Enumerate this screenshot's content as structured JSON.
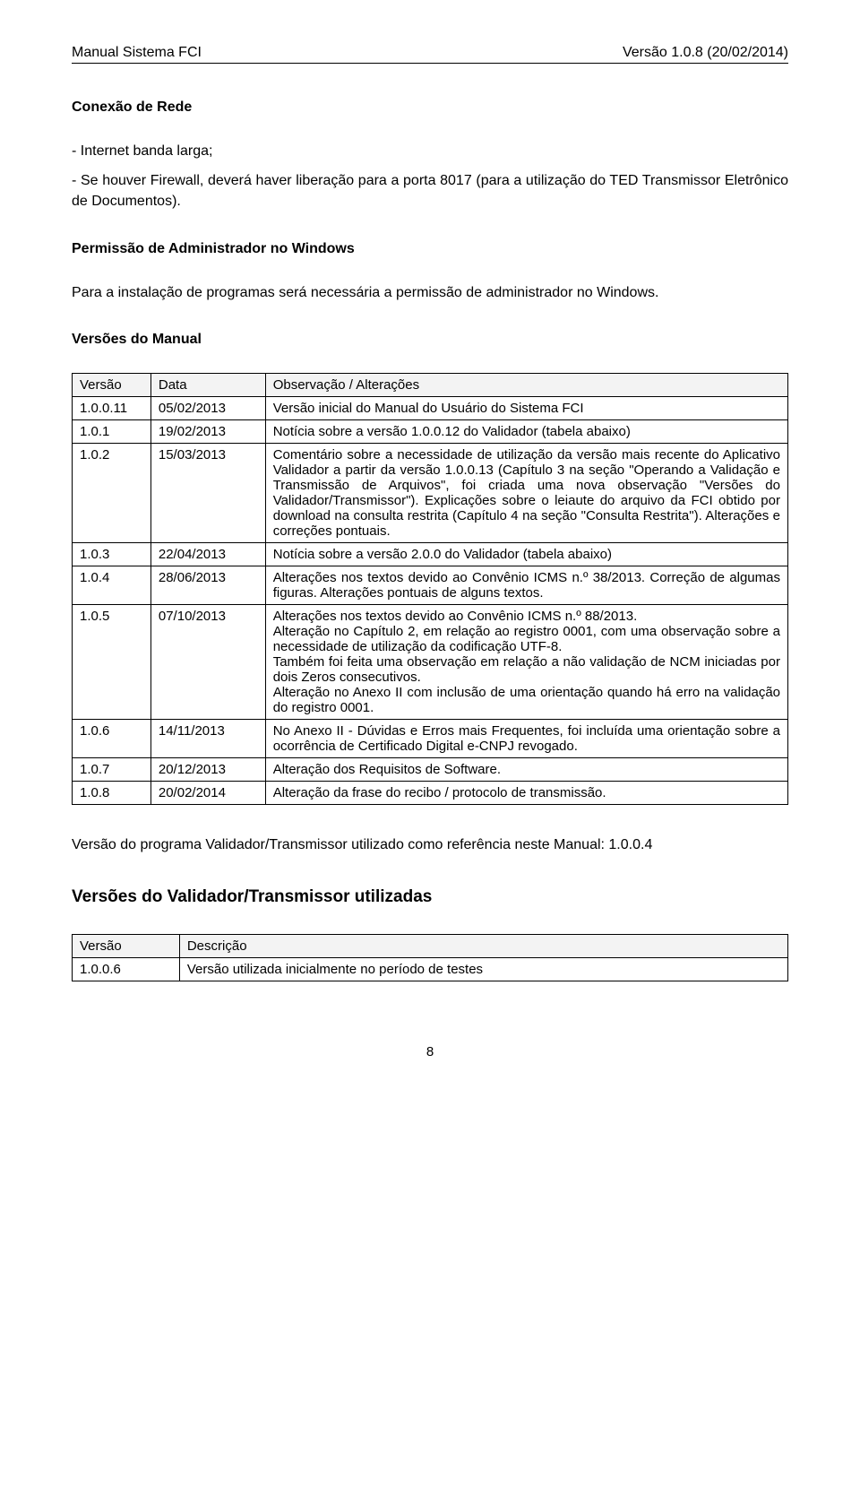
{
  "header": {
    "left": "Manual Sistema FCI",
    "right": "Versão 1.0.8 (20/02/2014)"
  },
  "sections": {
    "conexao_title": "Conexão de Rede",
    "conexao_item1": "- Internet banda larga;",
    "conexao_item2": "- Se houver Firewall, deverá haver liberação para a porta 8017 (para a utilização do TED Transmissor Eletrônico de Documentos).",
    "permissao_title": "Permissão de Administrador no Windows",
    "permissao_text": "Para a instalação de programas será necessária a permissão de administrador no Windows.",
    "versoes_title": "Versões do Manual"
  },
  "versoes_headers": {
    "versao": "Versão",
    "data": "Data",
    "obs": "Observação / Alterações"
  },
  "versoes_rows": [
    {
      "v": "1.0.0.11",
      "d": "05/02/2013",
      "o": "Versão inicial do Manual do Usuário do Sistema FCI"
    },
    {
      "v": "1.0.1",
      "d": "19/02/2013",
      "o": "Notícia sobre a versão 1.0.0.12 do Validador (tabela abaixo)"
    },
    {
      "v": "1.0.2",
      "d": "15/03/2013",
      "o": "Comentário sobre a necessidade de utilização da versão mais recente do Aplicativo Validador a partir da versão 1.0.0.13 (Capítulo 3 na seção \"Operando a Validação e Transmissão de Arquivos\", foi criada uma nova observação \"Versões do Validador/Transmissor\"). Explicações sobre o leiaute do arquivo da FCI obtido por download na consulta restrita (Capítulo 4 na seção \"Consulta Restrita\"). Alterações e correções pontuais."
    },
    {
      "v": "1.0.3",
      "d": "22/04/2013",
      "o": "Notícia sobre a versão 2.0.0 do Validador (tabela abaixo)"
    },
    {
      "v": "1.0.4",
      "d": "28/06/2013",
      "o": "Alterações nos textos devido ao Convênio ICMS n.º 38/2013. Correção de algumas figuras. Alterações pontuais de alguns textos."
    },
    {
      "v": "1.0.5",
      "d": "07/10/2013",
      "o": "Alterações nos textos devido ao Convênio ICMS n.º 88/2013.\nAlteração no Capítulo 2, em relação ao registro 0001, com uma observação sobre a necessidade de utilização da codificação UTF-8.\nTambém foi feita uma observação em relação a não validação de NCM iniciadas por dois Zeros consecutivos.\nAlteração no Anexo II com inclusão de uma orientação quando há erro na validação do registro 0001."
    },
    {
      "v": "1.0.6",
      "d": "14/11/2013",
      "o": "No Anexo II - Dúvidas e Erros mais Frequentes, foi incluída uma orientação sobre a ocorrência de Certificado Digital e-CNPJ revogado."
    },
    {
      "v": "1.0.7",
      "d": "20/12/2013",
      "o": "Alteração dos Requisitos de Software."
    },
    {
      "v": "1.0.8",
      "d": "20/02/2014",
      "o": "Alteração da frase do recibo / protocolo de transmissão."
    }
  ],
  "ref_line": "Versão do programa Validador/Transmissor utilizado como referência neste Manual: 1.0.0.4",
  "vt_title": "Versões do Validador/Transmissor utilizadas",
  "vt_headers": {
    "versao": "Versão",
    "desc": "Descrição"
  },
  "vt_rows": [
    {
      "v": "1.0.0.6",
      "d": "Versão utilizada inicialmente no período de testes"
    }
  ],
  "page_number": "8"
}
